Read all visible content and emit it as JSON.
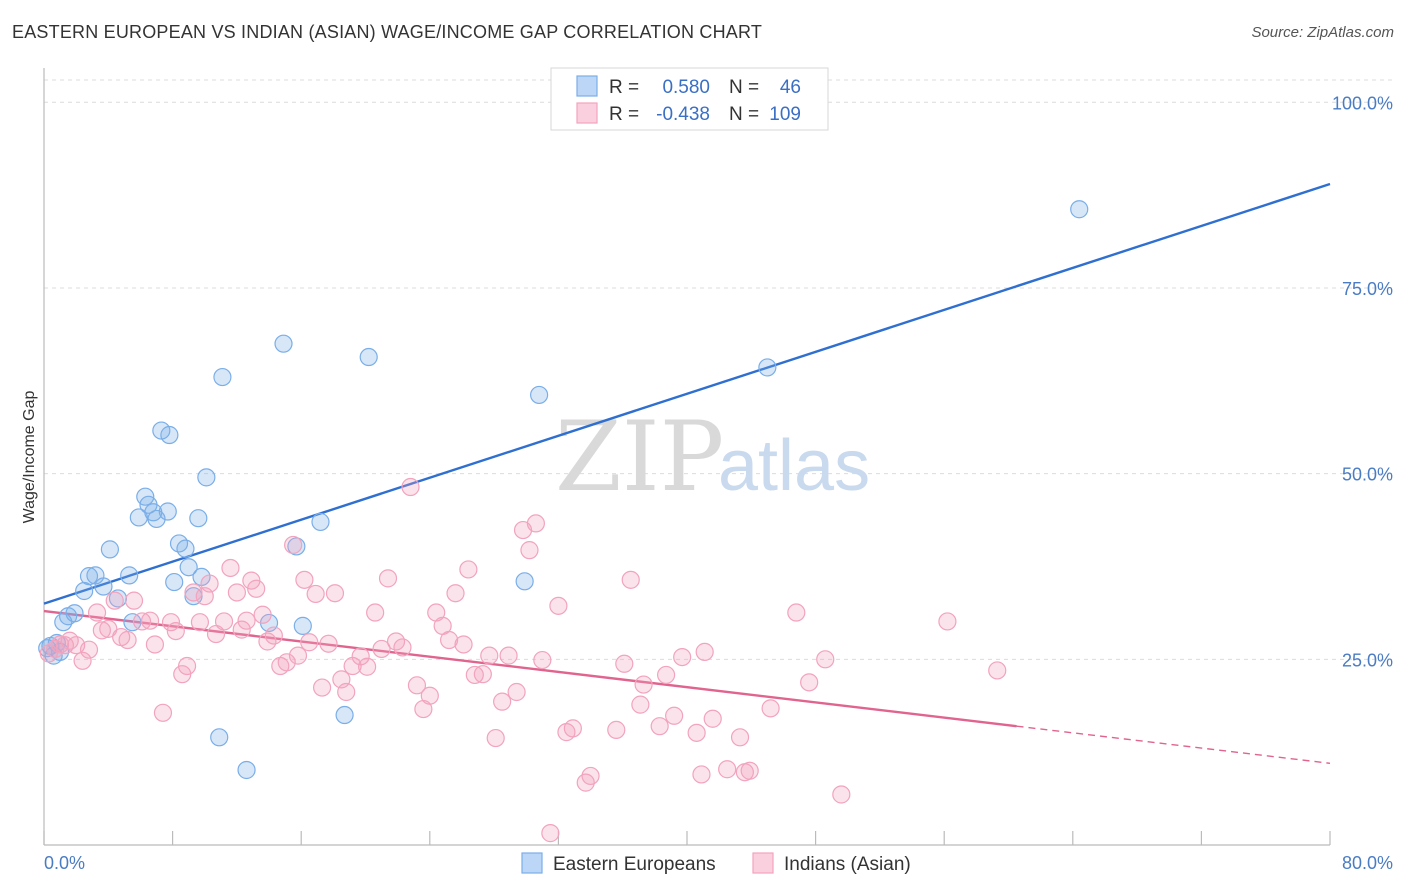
{
  "title": "EASTERN EUROPEAN VS INDIAN (ASIAN) WAGE/INCOME GAP CORRELATION CHART",
  "source": "Source: ZipAtlas.com",
  "watermark": {
    "zip": "ZIP",
    "atlas": "atlas"
  },
  "legend": {
    "rows": [
      {
        "r_label": "R =",
        "r_value": "0.580",
        "n_label": "N =",
        "n_value": "46"
      },
      {
        "r_label": "R =",
        "r_value": "-0.438",
        "n_label": "N =",
        "n_value": "109"
      }
    ]
  },
  "chart_data": {
    "type": "scatter",
    "ylabel": "Wage/Income Gap",
    "x_tick_labels": [
      "0.0%",
      "80.0%"
    ],
    "y_tick_labels": [
      "100.0%",
      "75.0%",
      "50.0%",
      "25.0%"
    ],
    "xlim": [
      0,
      80
    ],
    "ylim": [
      0,
      103
    ],
    "grid": "horizontal dashed",
    "legend_placement": "top-center",
    "series": [
      {
        "name": "Eastern Europeans",
        "color": "#7aaee8",
        "line_color": "#2f6fd0",
        "trend": {
          "x": [
            0,
            80
          ],
          "y": [
            32.5,
            89.0
          ]
        },
        "points": [
          [
            0.2,
            26.5
          ],
          [
            0.4,
            26.8
          ],
          [
            0.6,
            25.5
          ],
          [
            0.8,
            27.2
          ],
          [
            1.0,
            26.0
          ],
          [
            1.2,
            30.0
          ],
          [
            1.5,
            30.8
          ],
          [
            1.9,
            31.2
          ],
          [
            2.5,
            34.2
          ],
          [
            2.8,
            36.2
          ],
          [
            3.2,
            36.3
          ],
          [
            3.7,
            34.8
          ],
          [
            4.1,
            39.8
          ],
          [
            4.6,
            33.2
          ],
          [
            5.3,
            36.3
          ],
          [
            5.5,
            30.0
          ],
          [
            5.9,
            44.1
          ],
          [
            6.3,
            46.9
          ],
          [
            6.5,
            45.8
          ],
          [
            6.8,
            44.8
          ],
          [
            7.0,
            43.9
          ],
          [
            7.3,
            55.8
          ],
          [
            7.7,
            44.9
          ],
          [
            7.8,
            55.2
          ],
          [
            8.1,
            35.4
          ],
          [
            8.4,
            40.6
          ],
          [
            8.8,
            39.9
          ],
          [
            9.0,
            37.4
          ],
          [
            9.3,
            33.5
          ],
          [
            9.6,
            44.0
          ],
          [
            9.8,
            36.1
          ],
          [
            10.1,
            49.5
          ],
          [
            10.9,
            14.5
          ],
          [
            11.1,
            63.0
          ],
          [
            12.6,
            10.1
          ],
          [
            14.0,
            29.9
          ],
          [
            14.9,
            67.5
          ],
          [
            15.7,
            40.2
          ],
          [
            16.1,
            29.5
          ],
          [
            17.2,
            43.5
          ],
          [
            18.7,
            17.5
          ],
          [
            20.2,
            65.7
          ],
          [
            29.9,
            35.5
          ],
          [
            30.8,
            60.6
          ],
          [
            45.0,
            64.3
          ],
          [
            64.4,
            85.6
          ]
        ]
      },
      {
        "name": "Indians (Asian)",
        "color": "#f2a3bd",
        "line_color": "#e0648f",
        "trend": {
          "x": [
            0,
            60.5
          ],
          "y": [
            31.5,
            16.0
          ]
        },
        "trend_dashed": {
          "x": [
            60.5,
            80
          ],
          "y": [
            16.0,
            11.0
          ]
        },
        "points": [
          [
            0.3,
            25.8
          ],
          [
            0.7,
            26.4
          ],
          [
            1.0,
            27.0
          ],
          [
            1.3,
            26.9
          ],
          [
            1.6,
            27.5
          ],
          [
            2.0,
            26.9
          ],
          [
            2.4,
            24.8
          ],
          [
            2.8,
            26.3
          ],
          [
            3.3,
            31.3
          ],
          [
            3.6,
            28.9
          ],
          [
            4.0,
            29.1
          ],
          [
            4.4,
            32.9
          ],
          [
            4.8,
            28.0
          ],
          [
            5.2,
            27.6
          ],
          [
            5.6,
            32.9
          ],
          [
            6.1,
            30.1
          ],
          [
            6.6,
            30.2
          ],
          [
            6.9,
            27.0
          ],
          [
            7.4,
            17.8
          ],
          [
            7.9,
            30.0
          ],
          [
            8.2,
            28.8
          ],
          [
            8.6,
            23.0
          ],
          [
            8.9,
            24.1
          ],
          [
            9.3,
            34.0
          ],
          [
            9.7,
            30.0
          ],
          [
            10.0,
            33.5
          ],
          [
            10.3,
            35.2
          ],
          [
            10.7,
            28.4
          ],
          [
            11.2,
            30.1
          ],
          [
            11.6,
            37.3
          ],
          [
            12.0,
            34.0
          ],
          [
            12.3,
            29.0
          ],
          [
            12.6,
            30.2
          ],
          [
            12.9,
            35.6
          ],
          [
            13.2,
            34.5
          ],
          [
            13.6,
            31.0
          ],
          [
            13.9,
            27.4
          ],
          [
            14.3,
            28.2
          ],
          [
            14.7,
            24.1
          ],
          [
            15.1,
            24.6
          ],
          [
            15.5,
            40.4
          ],
          [
            15.8,
            25.5
          ],
          [
            16.2,
            35.7
          ],
          [
            16.5,
            27.3
          ],
          [
            16.9,
            33.8
          ],
          [
            17.3,
            21.2
          ],
          [
            17.7,
            27.1
          ],
          [
            18.1,
            33.9
          ],
          [
            18.5,
            22.3
          ],
          [
            18.8,
            20.6
          ],
          [
            19.2,
            24.1
          ],
          [
            19.7,
            25.4
          ],
          [
            20.1,
            24.0
          ],
          [
            20.6,
            31.3
          ],
          [
            21.0,
            26.4
          ],
          [
            21.4,
            35.9
          ],
          [
            21.9,
            27.4
          ],
          [
            22.3,
            26.6
          ],
          [
            22.8,
            48.2
          ],
          [
            23.2,
            21.5
          ],
          [
            23.6,
            18.3
          ],
          [
            24.0,
            20.1
          ],
          [
            24.4,
            31.3
          ],
          [
            24.8,
            29.5
          ],
          [
            25.2,
            27.6
          ],
          [
            25.6,
            33.9
          ],
          [
            26.1,
            27.0
          ],
          [
            26.4,
            37.1
          ],
          [
            26.8,
            22.9
          ],
          [
            27.3,
            23.0
          ],
          [
            27.7,
            25.5
          ],
          [
            28.1,
            14.4
          ],
          [
            28.5,
            19.3
          ],
          [
            28.9,
            25.5
          ],
          [
            29.4,
            20.6
          ],
          [
            29.8,
            42.4
          ],
          [
            30.2,
            39.7
          ],
          [
            30.6,
            43.3
          ],
          [
            31.0,
            24.9
          ],
          [
            31.5,
            1.6
          ],
          [
            32.0,
            32.2
          ],
          [
            32.5,
            15.2
          ],
          [
            32.9,
            15.7
          ],
          [
            33.7,
            8.4
          ],
          [
            34.0,
            9.3
          ],
          [
            35.6,
            15.5
          ],
          [
            36.1,
            24.4
          ],
          [
            36.5,
            35.7
          ],
          [
            37.1,
            18.9
          ],
          [
            37.3,
            21.6
          ],
          [
            38.3,
            16.0
          ],
          [
            38.7,
            22.9
          ],
          [
            39.2,
            17.4
          ],
          [
            39.7,
            25.3
          ],
          [
            40.6,
            15.1
          ],
          [
            40.9,
            9.5
          ],
          [
            41.1,
            26.0
          ],
          [
            41.6,
            17.0
          ],
          [
            42.5,
            10.2
          ],
          [
            43.3,
            14.5
          ],
          [
            43.6,
            9.8
          ],
          [
            43.9,
            10.0
          ],
          [
            45.2,
            18.4
          ],
          [
            46.8,
            31.3
          ],
          [
            47.6,
            21.9
          ],
          [
            48.6,
            25.0
          ],
          [
            49.6,
            6.8
          ],
          [
            56.2,
            30.1
          ],
          [
            59.3,
            23.5
          ]
        ]
      }
    ]
  }
}
